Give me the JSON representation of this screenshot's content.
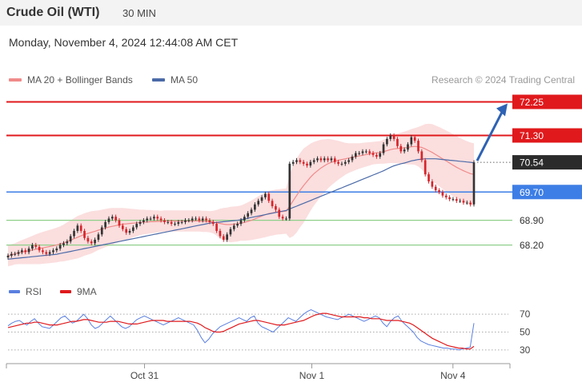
{
  "header": {
    "title": "Crude Oil (WTI)",
    "timeframe": "30 MIN",
    "timestamp": "Monday, November 4, 2024 12:44:08 AM CET"
  },
  "legend": {
    "ma20": "MA 20 + Bollinger Bands",
    "ma50": "MA 50",
    "credit": "Research © 2024 Trading Central",
    "rsi": "RSI",
    "rsi_ma": "9MA"
  },
  "colors": {
    "resistance": "#e0191c",
    "pivot": "#3d7ee6",
    "support": "#8fcf8a",
    "bullish_candle": "#333333",
    "bearish_candle": "#d6242a",
    "ma20": "#f08a8a",
    "bollinger_fill": "#f9d3d3",
    "ma50": "#4a6aa8",
    "arrow": "#2e62b4",
    "rsi": "#5a7fe0",
    "rsi_ma": "#e0191c"
  },
  "chart_data": [
    {
      "type": "candlestick",
      "title": "Crude Oil (WTI)",
      "timeframe": "30 MIN",
      "x_tick_labels": [
        "Oct 31",
        "Nov 1",
        "Nov 4"
      ],
      "ylim": [
        67.4,
        72.6
      ],
      "current_price": 70.54,
      "levels": [
        {
          "label": "72.25",
          "value": 72.25,
          "kind": "resistance",
          "target": true
        },
        {
          "label": "71.30",
          "value": 71.3,
          "kind": "resistance"
        },
        {
          "label": "70.54",
          "value": 70.54,
          "kind": "last"
        },
        {
          "label": "69.70",
          "value": 69.7,
          "kind": "pivot"
        },
        {
          "label": "68.90",
          "value": 68.9,
          "kind": "support"
        },
        {
          "label": "68.20",
          "value": 68.2,
          "kind": "support"
        }
      ],
      "closes": [
        67.9,
        67.95,
        67.95,
        68.0,
        68.05,
        68.0,
        68.1,
        68.2,
        68.15,
        68.05,
        68.0,
        67.95,
        68.0,
        68.05,
        68.1,
        68.2,
        68.25,
        68.3,
        68.45,
        68.6,
        68.75,
        68.6,
        68.4,
        68.3,
        68.25,
        68.35,
        68.5,
        68.7,
        68.85,
        68.95,
        69.0,
        68.9,
        68.75,
        68.65,
        68.55,
        68.6,
        68.7,
        68.8,
        68.85,
        68.9,
        68.95,
        68.95,
        69.0,
        68.95,
        68.9,
        68.85,
        68.85,
        68.8,
        68.8,
        68.85,
        68.85,
        68.9,
        68.9,
        68.95,
        68.95,
        68.9,
        68.95,
        68.9,
        68.85,
        68.8,
        68.6,
        68.45,
        68.35,
        68.5,
        68.65,
        68.75,
        68.8,
        68.9,
        69.0,
        69.1,
        69.2,
        69.35,
        69.45,
        69.55,
        69.65,
        69.45,
        69.3,
        69.2,
        69.0,
        68.95,
        68.95,
        70.5,
        70.55,
        70.6,
        70.55,
        70.5,
        70.45,
        70.55,
        70.6,
        70.65,
        70.6,
        70.65,
        70.6,
        70.65,
        70.55,
        70.5,
        70.5,
        70.55,
        70.6,
        70.7,
        70.8,
        70.8,
        70.85,
        70.85,
        70.8,
        70.75,
        70.7,
        70.8,
        71.05,
        71.2,
        71.3,
        71.2,
        71.0,
        70.85,
        70.9,
        71.05,
        71.25,
        71.15,
        70.85,
        70.6,
        70.2,
        70.0,
        69.85,
        69.75,
        69.7,
        69.6,
        69.55,
        69.5,
        69.5,
        69.45,
        69.45,
        69.4,
        69.4,
        69.35,
        70.54
      ],
      "ma20": [
        67.9,
        67.92,
        67.95,
        67.98,
        68.0,
        68.02,
        68.04,
        68.06,
        68.08,
        68.1,
        68.12,
        68.14,
        68.16,
        68.18,
        68.2,
        68.23,
        68.26,
        68.3,
        68.34,
        68.38,
        68.42,
        68.46,
        68.5,
        68.53,
        68.56,
        68.59,
        68.62,
        68.65,
        68.68,
        68.71,
        68.73,
        68.75,
        68.77,
        68.79,
        68.8,
        68.81,
        68.82,
        68.83,
        68.84,
        68.85,
        68.85,
        68.86,
        68.86,
        68.87,
        68.87,
        68.88,
        68.88,
        68.88,
        68.88,
        68.88,
        68.88,
        68.88,
        68.88,
        68.88,
        68.88,
        68.88,
        68.87,
        68.87,
        68.86,
        68.85,
        68.83,
        68.81,
        68.79,
        68.78,
        68.78,
        68.79,
        68.8,
        68.82,
        68.84,
        68.87,
        68.9,
        68.94,
        68.98,
        69.02,
        69.06,
        69.09,
        69.11,
        69.13,
        69.14,
        69.15,
        69.16,
        69.3,
        69.45,
        69.6,
        69.75,
        69.88,
        70.0,
        70.12,
        70.22,
        70.3,
        70.38,
        70.44,
        70.5,
        70.54,
        70.57,
        70.6,
        70.62,
        70.64,
        70.66,
        70.68,
        70.7,
        70.72,
        70.74,
        70.76,
        70.78,
        70.8,
        70.81,
        70.82,
        70.84,
        70.87,
        70.9,
        70.92,
        70.93,
        70.94,
        70.95,
        70.96,
        70.98,
        70.99,
        70.98,
        70.96,
        70.92,
        70.87,
        70.82,
        70.76,
        70.7,
        70.64,
        70.58,
        70.52,
        70.46,
        70.4,
        70.35,
        70.3,
        70.26,
        70.22,
        70.2
      ],
      "ma50": [
        67.8,
        67.81,
        67.82,
        67.83,
        67.84,
        67.85,
        67.86,
        67.87,
        67.88,
        67.89,
        67.9,
        67.91,
        67.92,
        67.93,
        67.94,
        67.96,
        67.98,
        68.0,
        68.02,
        68.04,
        68.06,
        68.08,
        68.1,
        68.12,
        68.14,
        68.16,
        68.18,
        68.2,
        68.22,
        68.24,
        68.26,
        68.28,
        68.3,
        68.32,
        68.34,
        68.36,
        68.38,
        68.4,
        68.42,
        68.44,
        68.46,
        68.48,
        68.5,
        68.52,
        68.54,
        68.56,
        68.58,
        68.6,
        68.62,
        68.64,
        68.66,
        68.68,
        68.7,
        68.72,
        68.74,
        68.76,
        68.78,
        68.8,
        68.82,
        68.83,
        68.84,
        68.85,
        68.86,
        68.87,
        68.88,
        68.89,
        68.9,
        68.92,
        68.94,
        68.96,
        68.98,
        69.0,
        69.02,
        69.04,
        69.06,
        69.08,
        69.1,
        69.12,
        69.14,
        69.16,
        69.18,
        69.22,
        69.26,
        69.3,
        69.34,
        69.38,
        69.42,
        69.46,
        69.5,
        69.54,
        69.58,
        69.62,
        69.66,
        69.7,
        69.74,
        69.78,
        69.82,
        69.86,
        69.9,
        69.94,
        69.98,
        70.02,
        70.06,
        70.1,
        70.14,
        70.18,
        70.22,
        70.26,
        70.3,
        70.35,
        70.4,
        70.44,
        70.47,
        70.5,
        70.52,
        70.55,
        70.58,
        70.6,
        70.62,
        70.63,
        70.64,
        70.64,
        70.64,
        70.64,
        70.63,
        70.62,
        70.61,
        70.6,
        70.59,
        70.58,
        70.57,
        70.56,
        70.55,
        70.54,
        70.53
      ],
      "bollinger_width": [
        0.3,
        0.3,
        0.3,
        0.32,
        0.34,
        0.36,
        0.38,
        0.4,
        0.42,
        0.44,
        0.45,
        0.46,
        0.47,
        0.48,
        0.49,
        0.5,
        0.52,
        0.54,
        0.56,
        0.58,
        0.6,
        0.6,
        0.6,
        0.6,
        0.6,
        0.58,
        0.56,
        0.55,
        0.54,
        0.53,
        0.52,
        0.5,
        0.48,
        0.46,
        0.44,
        0.42,
        0.4,
        0.38,
        0.36,
        0.35,
        0.34,
        0.33,
        0.32,
        0.31,
        0.3,
        0.3,
        0.3,
        0.3,
        0.3,
        0.3,
        0.3,
        0.3,
        0.3,
        0.3,
        0.3,
        0.3,
        0.3,
        0.3,
        0.3,
        0.32,
        0.36,
        0.42,
        0.46,
        0.48,
        0.5,
        0.5,
        0.5,
        0.5,
        0.52,
        0.54,
        0.56,
        0.58,
        0.6,
        0.62,
        0.64,
        0.64,
        0.64,
        0.64,
        0.64,
        0.64,
        0.64,
        0.9,
        1.0,
        1.05,
        1.05,
        1.05,
        1.0,
        0.95,
        0.9,
        0.85,
        0.8,
        0.75,
        0.7,
        0.65,
        0.6,
        0.55,
        0.5,
        0.45,
        0.42,
        0.4,
        0.38,
        0.36,
        0.35,
        0.34,
        0.33,
        0.32,
        0.32,
        0.32,
        0.34,
        0.36,
        0.38,
        0.4,
        0.42,
        0.44,
        0.46,
        0.48,
        0.5,
        0.52,
        0.56,
        0.62,
        0.7,
        0.76,
        0.8,
        0.82,
        0.84,
        0.85,
        0.86,
        0.87,
        0.88,
        0.88,
        0.88,
        0.88,
        0.88,
        0.88,
        0.88
      ]
    },
    {
      "type": "line",
      "title": "RSI",
      "yticks": [
        30,
        50,
        70
      ],
      "ylim": [
        20,
        80
      ],
      "series": [
        {
          "name": "RSI",
          "values": [
            57,
            60,
            62,
            63,
            60,
            58,
            62,
            65,
            60,
            56,
            55,
            54,
            58,
            62,
            66,
            68,
            64,
            60,
            62,
            66,
            70,
            65,
            58,
            54,
            56,
            60,
            64,
            68,
            64,
            60,
            56,
            54,
            56,
            60,
            64,
            66,
            68,
            66,
            64,
            62,
            60,
            58,
            60,
            62,
            64,
            66,
            64,
            62,
            60,
            58,
            52,
            44,
            38,
            42,
            48,
            52,
            56,
            58,
            60,
            62,
            64,
            66,
            64,
            62,
            66,
            68,
            60,
            56,
            54,
            52,
            50,
            54,
            58,
            62,
            66,
            64,
            62,
            66,
            70,
            73,
            75,
            73,
            71,
            69,
            67,
            66,
            65,
            64,
            66,
            68,
            70,
            68,
            66,
            64,
            62,
            64,
            66,
            68,
            66,
            60,
            56,
            62,
            66,
            68,
            62,
            58,
            54,
            50,
            44,
            40,
            38,
            36,
            35,
            34,
            33,
            32,
            32,
            31,
            31,
            30,
            31,
            32,
            33,
            60
          ]
        },
        {
          "name": "9MA",
          "values": [
            55,
            56,
            57,
            58,
            59,
            60,
            60,
            61,
            61,
            60,
            59,
            58,
            58,
            58,
            59,
            60,
            61,
            62,
            62,
            63,
            64,
            64,
            63,
            62,
            61,
            61,
            61,
            62,
            62,
            62,
            61,
            60,
            59,
            59,
            59,
            60,
            61,
            62,
            63,
            63,
            63,
            63,
            62,
            62,
            62,
            62,
            62,
            62,
            62,
            61,
            60,
            58,
            55,
            53,
            51,
            50,
            50,
            51,
            53,
            55,
            57,
            59,
            60,
            61,
            62,
            63,
            63,
            62,
            61,
            60,
            59,
            58,
            58,
            58,
            59,
            60,
            61,
            62,
            63,
            65,
            67,
            69,
            70,
            71,
            71,
            70,
            69,
            68,
            67,
            67,
            67,
            67,
            67,
            67,
            66,
            66,
            65,
            65,
            65,
            64,
            63,
            63,
            63,
            63,
            62,
            61,
            60,
            58,
            55,
            52,
            49,
            46,
            43,
            41,
            39,
            37,
            35,
            34,
            33,
            32,
            32,
            31,
            31,
            34
          ]
        }
      ]
    }
  ]
}
